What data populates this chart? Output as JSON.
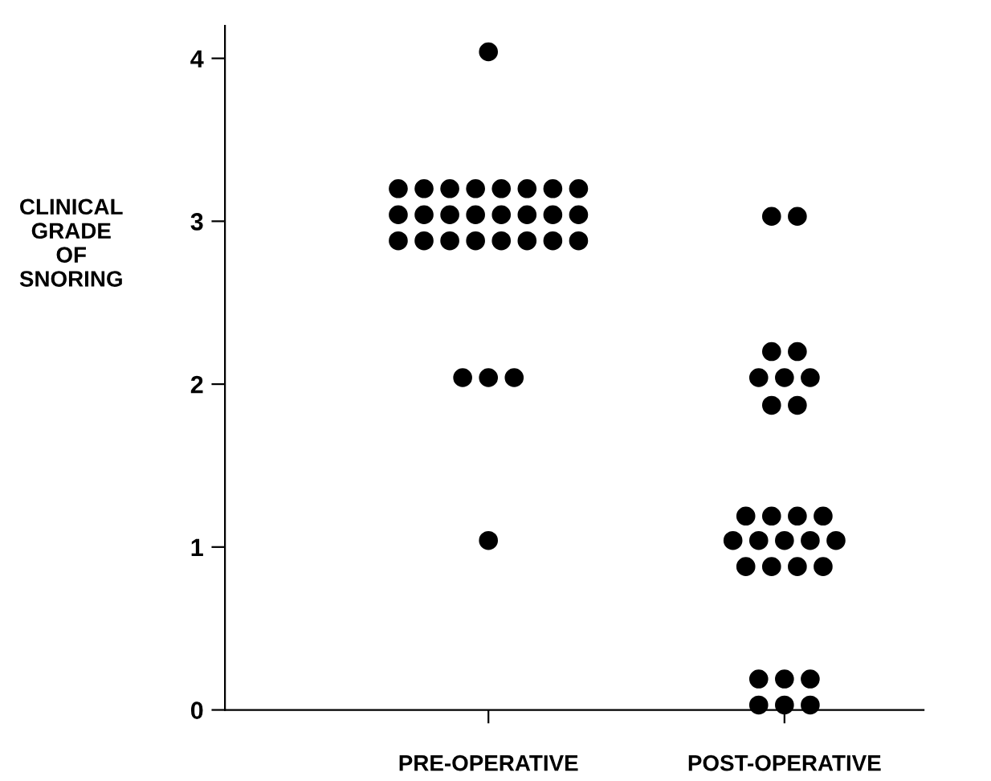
{
  "chart_data": {
    "type": "scatter",
    "ylabel": "CLINICAL\nGRADE\nOF\nSNORING",
    "categories": [
      "PRE-OPERATIVE",
      "POST-OPERATIVE"
    ],
    "series": [
      {
        "color": "#000000",
        "x": [
          "PRE-OPERATIVE",
          "PRE-OPERATIVE",
          "PRE-OPERATIVE",
          "PRE-OPERATIVE",
          "PRE-OPERATIVE",
          "PRE-OPERATIVE",
          "PRE-OPERATIVE",
          "PRE-OPERATIVE",
          "PRE-OPERATIVE",
          "PRE-OPERATIVE",
          "PRE-OPERATIVE",
          "PRE-OPERATIVE",
          "PRE-OPERATIVE",
          "PRE-OPERATIVE",
          "PRE-OPERATIVE",
          "PRE-OPERATIVE",
          "PRE-OPERATIVE",
          "PRE-OPERATIVE",
          "PRE-OPERATIVE",
          "PRE-OPERATIVE",
          "PRE-OPERATIVE",
          "PRE-OPERATIVE",
          "PRE-OPERATIVE",
          "PRE-OPERATIVE",
          "PRE-OPERATIVE",
          "PRE-OPERATIVE",
          "PRE-OPERATIVE",
          "PRE-OPERATIVE",
          "PRE-OPERATIVE",
          "POST-OPERATIVE",
          "POST-OPERATIVE",
          "POST-OPERATIVE",
          "POST-OPERATIVE",
          "POST-OPERATIVE",
          "POST-OPERATIVE",
          "POST-OPERATIVE",
          "POST-OPERATIVE",
          "POST-OPERATIVE",
          "POST-OPERATIVE",
          "POST-OPERATIVE",
          "POST-OPERATIVE",
          "POST-OPERATIVE",
          "POST-OPERATIVE",
          "POST-OPERATIVE",
          "POST-OPERATIVE",
          "POST-OPERATIVE",
          "POST-OPERATIVE",
          "POST-OPERATIVE",
          "POST-OPERATIVE",
          "POST-OPERATIVE",
          "POST-OPERATIVE",
          "POST-OPERATIVE",
          "POST-OPERATIVE",
          "POST-OPERATIVE",
          "POST-OPERATIVE",
          "POST-OPERATIVE",
          "POST-OPERATIVE"
        ],
        "values": [
          4.04,
          3.2,
          3.2,
          3.2,
          3.2,
          3.2,
          3.2,
          3.2,
          3.2,
          3.04,
          3.04,
          3.04,
          3.04,
          3.04,
          3.04,
          3.04,
          3.04,
          2.88,
          2.88,
          2.88,
          2.88,
          2.88,
          2.88,
          2.88,
          2.88,
          2.04,
          2.04,
          2.04,
          1.04,
          3.03,
          3.03,
          2.2,
          2.2,
          2.04,
          2.04,
          2.04,
          1.87,
          1.87,
          1.19,
          1.19,
          1.19,
          1.19,
          1.04,
          1.04,
          1.04,
          1.04,
          1.04,
          0.88,
          0.88,
          0.88,
          0.88,
          0.19,
          0.19,
          0.19,
          0.03,
          0.03,
          0.03
        ]
      }
    ],
    "marker": "circle",
    "grid": false,
    "ylim": [
      0,
      4.2
    ],
    "yticks": [
      0,
      1,
      2,
      3,
      4
    ]
  }
}
